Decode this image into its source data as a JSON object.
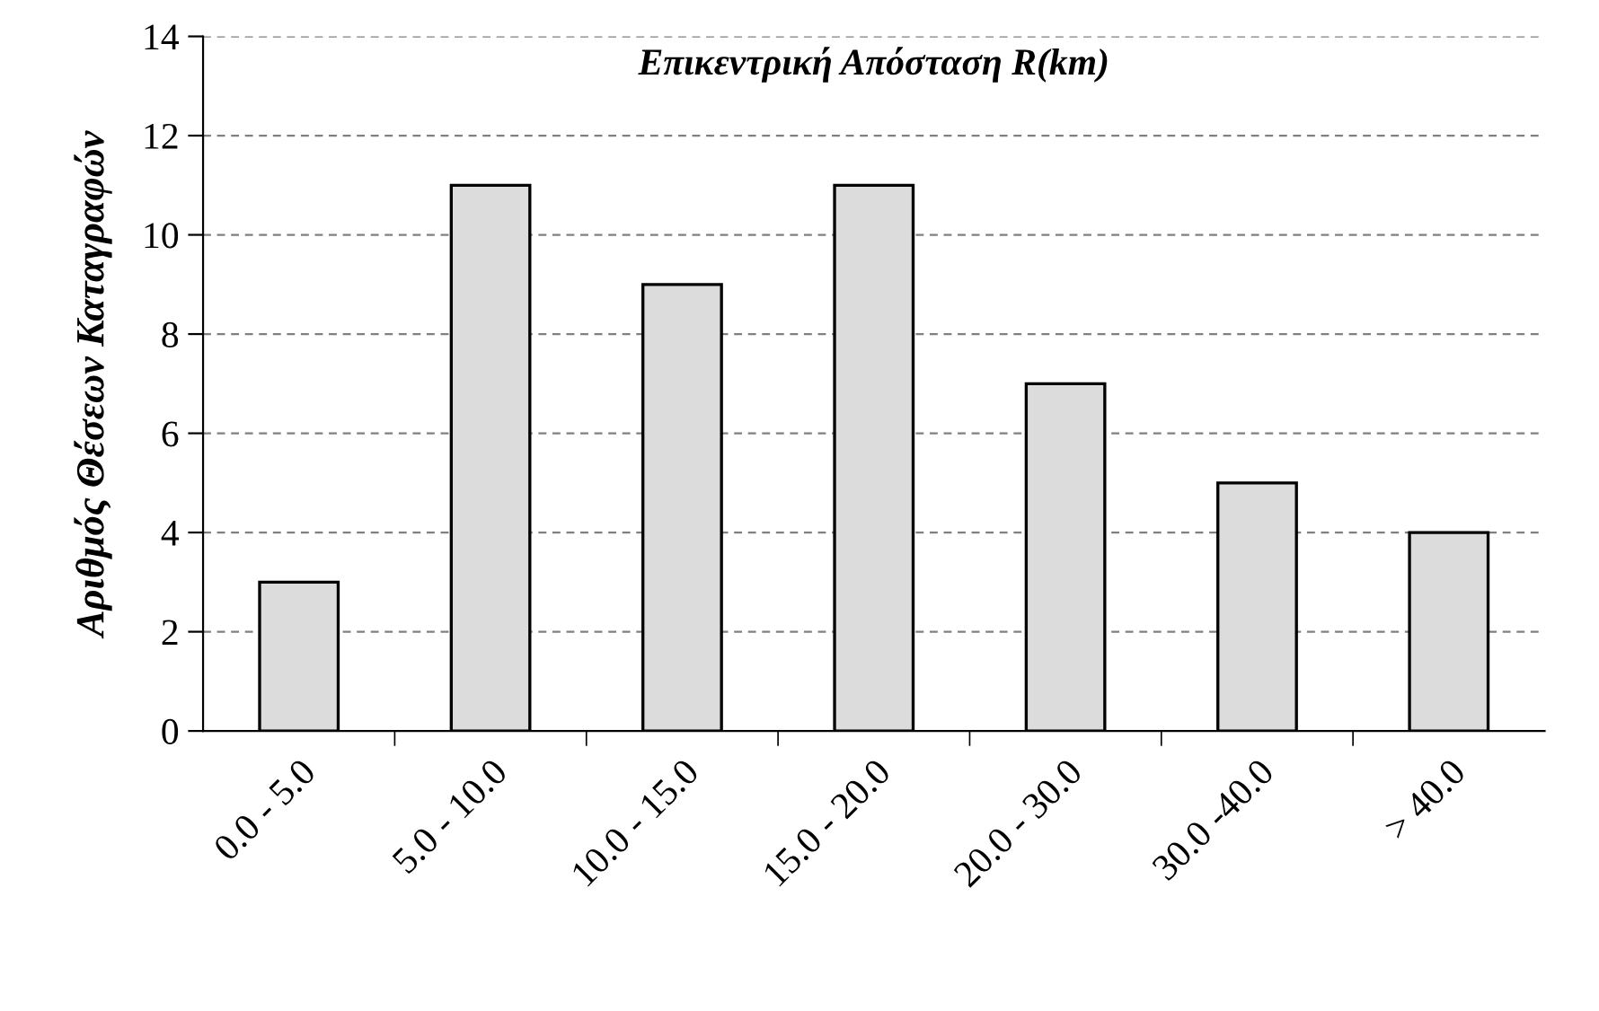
{
  "chart_data": {
    "type": "bar",
    "title": "Επικεντρική Απόσταση R(km)",
    "ylabel": "Αριθμός Θέσεων Καταγραφών",
    "categories": [
      "0.0 - 5.0",
      "5.0 - 10.0",
      "10.0 - 15.0",
      "15.0 - 20.0",
      "20.0 - 30.0",
      "30.0 -40.0",
      "> 40.0"
    ],
    "values": [
      3,
      11,
      9,
      11,
      7,
      5,
      4
    ],
    "color": "#dcdcdc",
    "ylim": [
      0,
      14
    ],
    "yticks": [
      0,
      2,
      4,
      6,
      8,
      10,
      12,
      14
    ],
    "grid": "y"
  }
}
